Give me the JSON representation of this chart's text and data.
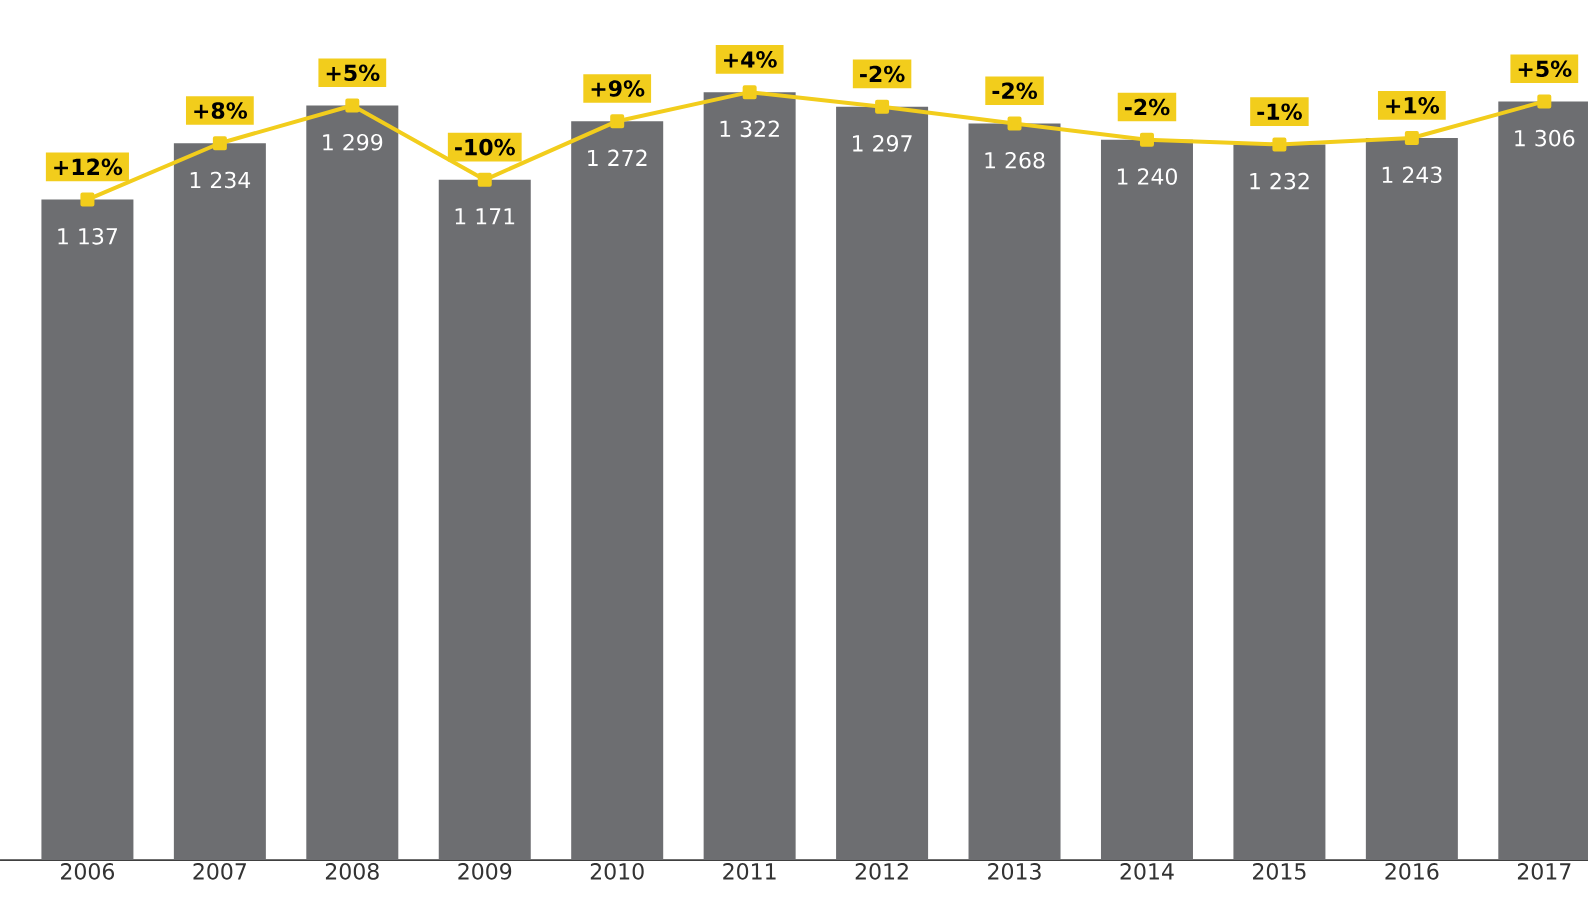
{
  "chart_data": {
    "type": "bar",
    "categories": [
      "2006",
      "2007",
      "2008",
      "2009",
      "2010",
      "2011",
      "2012",
      "2013",
      "2014",
      "2015",
      "2016",
      "2017"
    ],
    "series": [
      {
        "color": "#6d6e71",
        "values": [
          1137,
          1234,
          1299,
          1171,
          1272,
          1322,
          1297,
          1268,
          1240,
          1232,
          1243,
          1306
        ],
        "value_labels": [
          "1 137",
          "1 234",
          "1 299",
          "1 171",
          "1 272",
          "1 322",
          "1 297",
          "1 268",
          "1 240",
          "1 232",
          "1 243",
          "1 306"
        ]
      },
      {
        "type": "line",
        "color": "#f2cd1c",
        "values": [
          1137,
          1234,
          1299,
          1171,
          1272,
          1322,
          1297,
          1268,
          1240,
          1232,
          1243,
          1306
        ]
      }
    ],
    "annotations": [
      {
        "text": "+12%",
        "x": "2006",
        "y": 1137
      },
      {
        "text": "+8%",
        "x": "2007",
        "y": 1234
      },
      {
        "text": "+5%",
        "x": "2008",
        "y": 1299
      },
      {
        "text": "-10%",
        "x": "2009",
        "y": 1171
      },
      {
        "text": "+9%",
        "x": "2010",
        "y": 1272
      },
      {
        "text": "+4%",
        "x": "2011",
        "y": 1322
      },
      {
        "text": "-2%",
        "x": "2012",
        "y": 1297
      },
      {
        "text": "-2%",
        "x": "2013",
        "y": 1268
      },
      {
        "text": "-2%",
        "x": "2014",
        "y": 1240
      },
      {
        "text": "-1%",
        "x": "2015",
        "y": 1232
      },
      {
        "text": "+1%",
        "x": "2016",
        "y": 1243
      },
      {
        "text": "+5%",
        "x": "2017",
        "y": 1306
      }
    ],
    "marker": "square"
  }
}
